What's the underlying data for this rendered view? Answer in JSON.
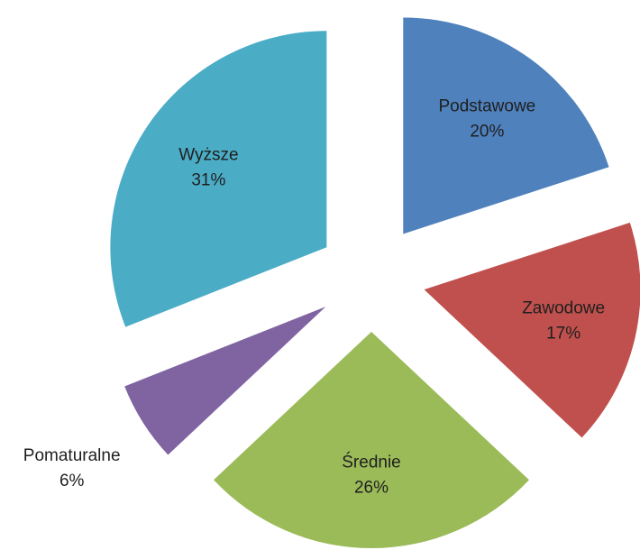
{
  "chart_data": {
    "type": "pie",
    "categories": [
      "Podstawowe",
      "Zawodowe",
      "Średnie",
      "Pomaturalne",
      "Wyższe"
    ],
    "values": [
      20,
      17,
      26,
      6,
      31
    ],
    "value_labels": [
      "20%",
      "17%",
      "26%",
      "6%",
      "31%"
    ],
    "colors": [
      "#4f81bd",
      "#c0504d",
      "#9bbb59",
      "#8064a2",
      "#4bacc6"
    ],
    "exploded": true
  }
}
